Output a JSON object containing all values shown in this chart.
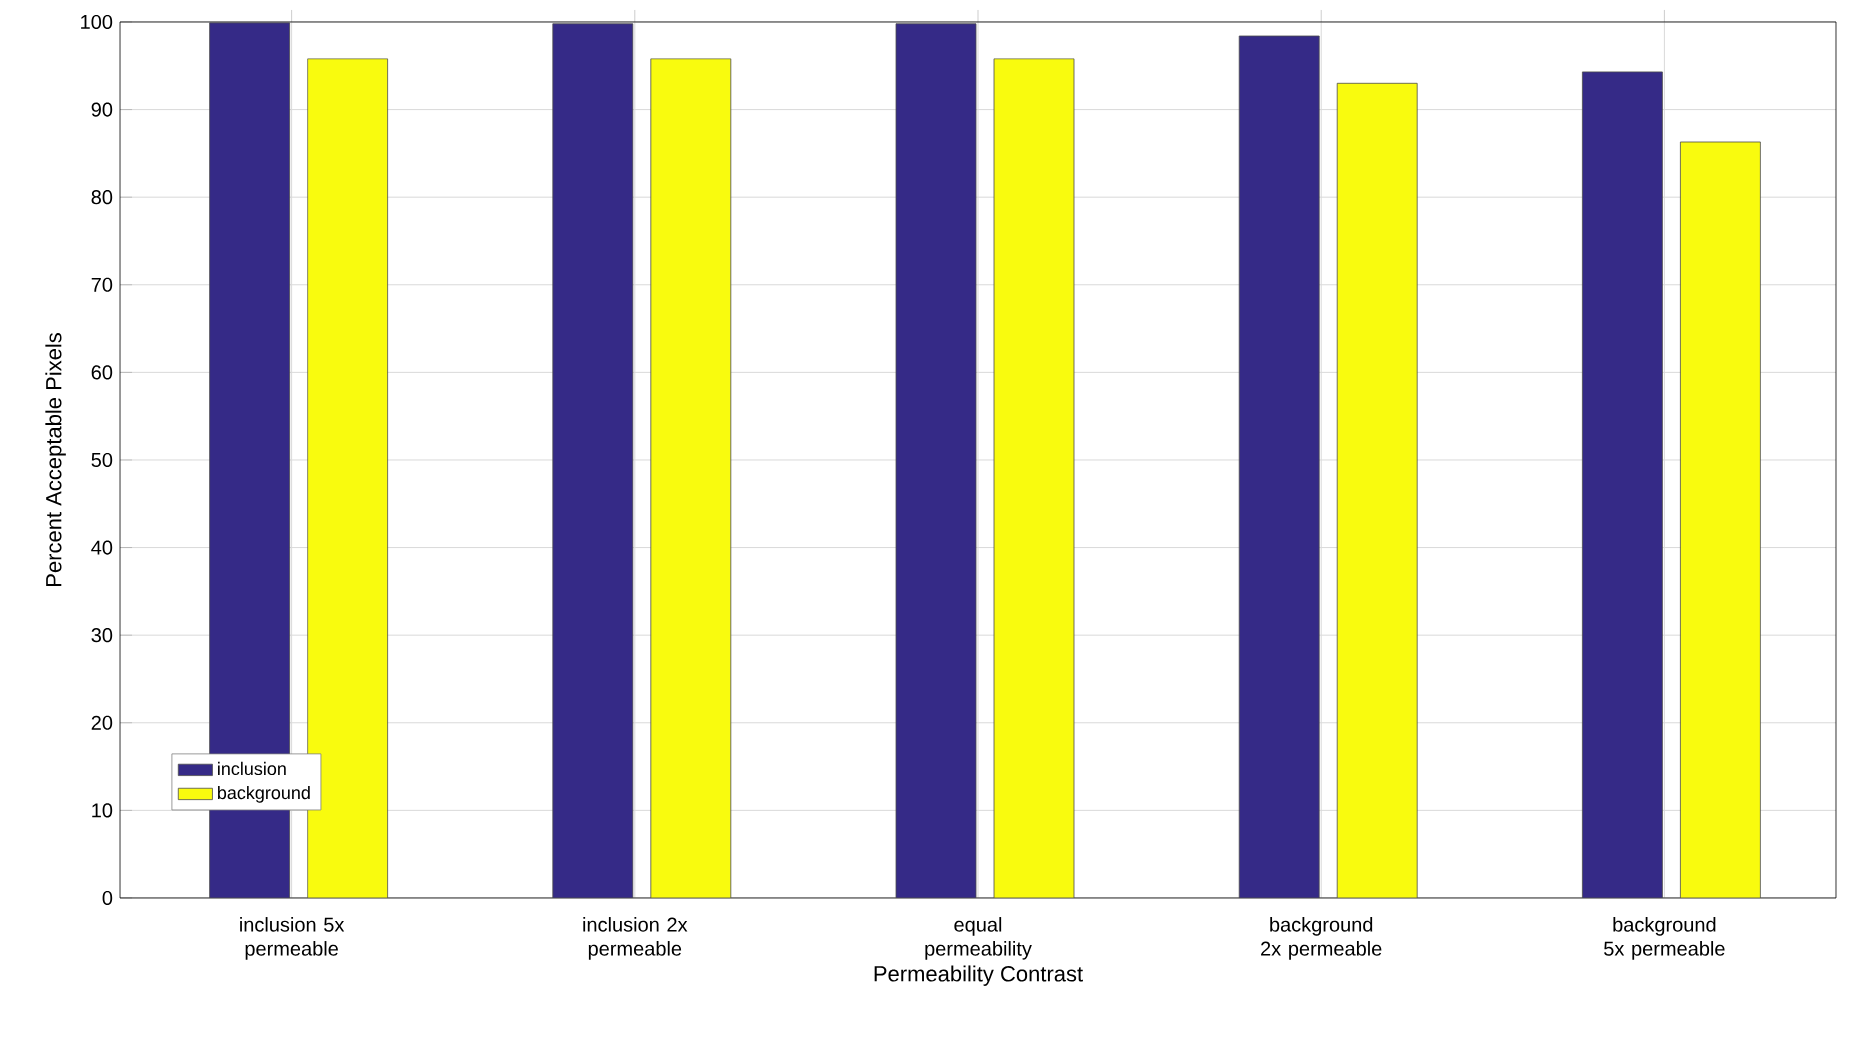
{
  "chart_data": {
    "type": "bar",
    "xlabel": "Permeability Contrast",
    "ylabel": "Percent Acceptable Pixels",
    "categories": [
      "inclusion 5x permeable",
      "inclusion 2x permeable",
      "equal permeability",
      "background 2x permeable",
      "background 5x permeable"
    ],
    "series": [
      {
        "name": "inclusion",
        "color": "#352a87",
        "values": [
          99.9,
          99.8,
          99.8,
          98.4,
          94.3
        ]
      },
      {
        "name": "background",
        "color": "#f9fb0e",
        "values": [
          95.8,
          95.8,
          95.8,
          93.0,
          86.3
        ]
      }
    ],
    "ylim": [
      0,
      100
    ],
    "yticks": [
      0,
      10,
      20,
      30,
      40,
      50,
      60,
      70,
      80,
      90,
      100
    ],
    "grid": true,
    "legend": "bottom left"
  }
}
